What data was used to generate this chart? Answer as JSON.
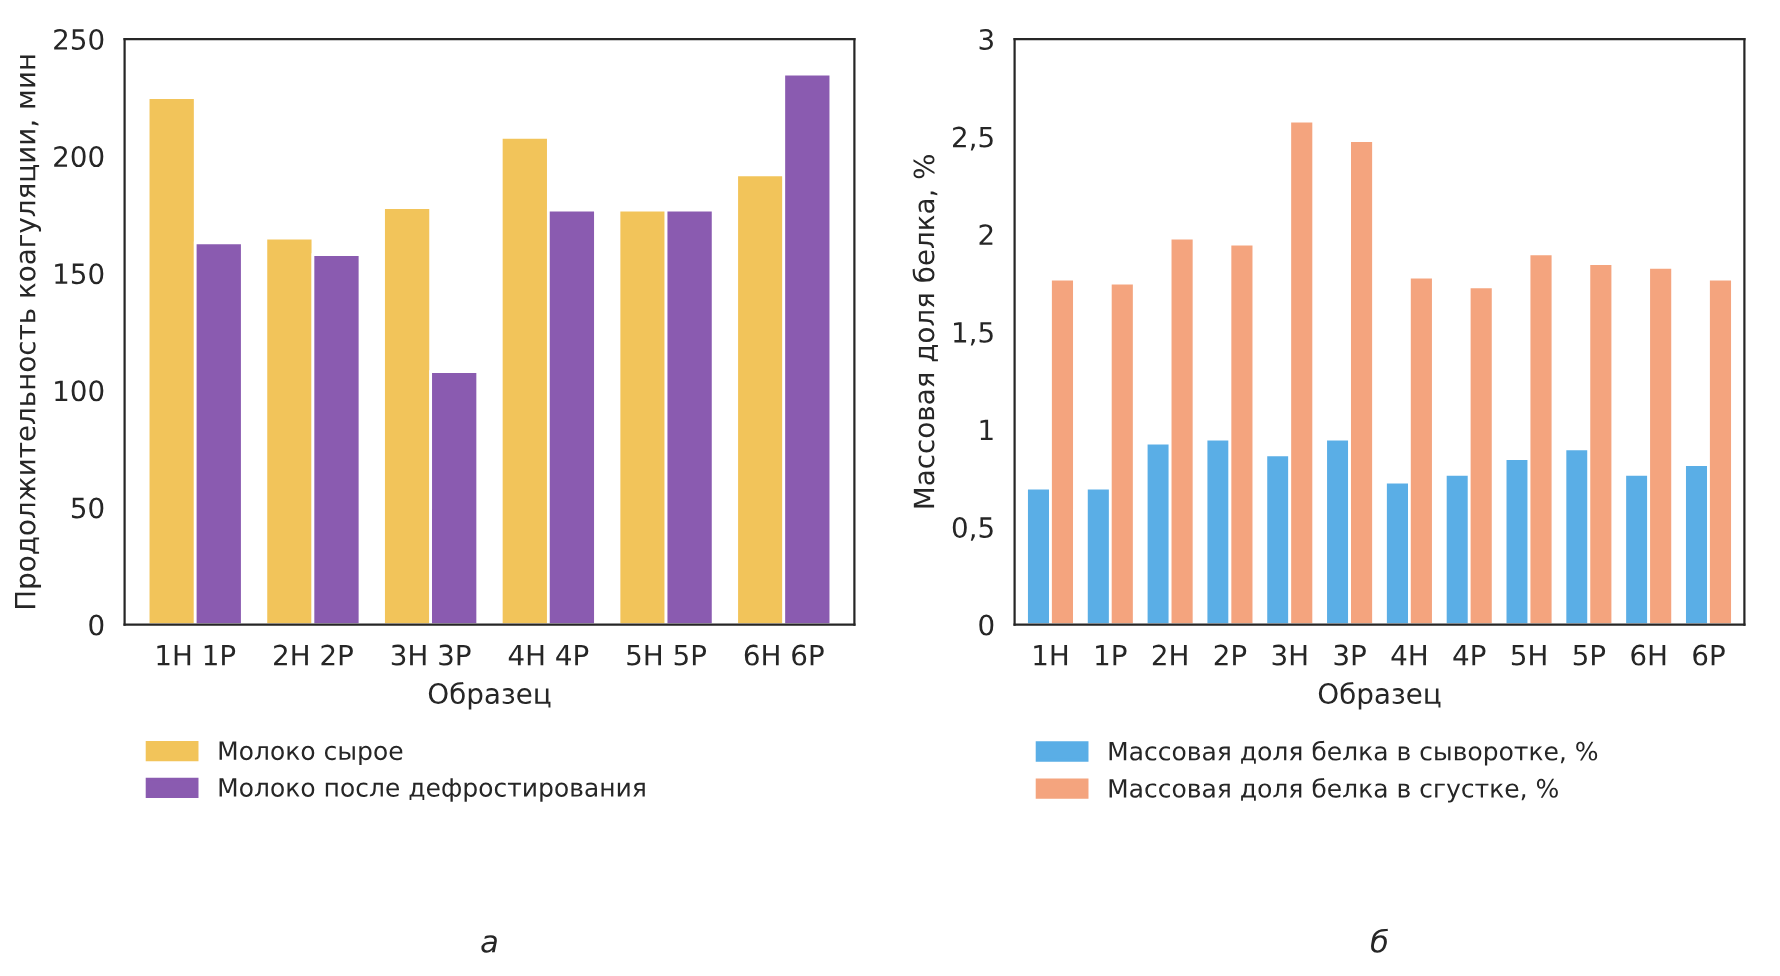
{
  "chart_data": [
    {
      "type": "bar",
      "xlabel": "Образец",
      "ylabel": "Продолжительность коагуляции, мин",
      "categories": [
        "1Н 1Р",
        "2Н 2Р",
        "3Н 3Р",
        "4Н 4Р",
        "5Н 5Р",
        "6Н 6Р"
      ],
      "series": [
        {
          "name": "Молоко сырое",
          "color": "#f2c45a",
          "values": [
            225,
            165,
            178,
            208,
            177,
            192
          ]
        },
        {
          "name": "Молоко после дефростирования",
          "color": "#8a5bb0",
          "values": [
            163,
            158,
            108,
            177,
            177,
            235
          ]
        }
      ],
      "ylim": [
        0,
        250
      ],
      "yticks": [
        0,
        50,
        100,
        150,
        200,
        250
      ],
      "legend": "bottom",
      "annotations": [
        "а"
      ]
    },
    {
      "type": "bar",
      "xlabel": "Образец",
      "ylabel": "Массовая доля белка, %",
      "categories": [
        "1Н",
        "1Р",
        "2Н",
        "2Р",
        "3Н",
        "3Р",
        "4Н",
        "4Р",
        "5Н",
        "5Р",
        "6Н",
        "6Р"
      ],
      "series": [
        {
          "name": "Массовая доля белка в сыворотке, %",
          "color": "#5aaee6",
          "values": [
            0.7,
            0.7,
            0.93,
            0.95,
            0.87,
            0.95,
            0.73,
            0.77,
            0.85,
            0.9,
            0.77,
            0.82
          ]
        },
        {
          "name": "Массовая доля белка в сгустке, %",
          "color": "#f4a47e",
          "values": [
            1.77,
            1.75,
            1.98,
            1.95,
            2.58,
            2.48,
            1.78,
            1.73,
            1.9,
            1.85,
            1.83,
            1.77
          ]
        }
      ],
      "ylim": [
        0,
        3
      ],
      "yticks": [
        0,
        {
          "value": 0.5,
          "label": "0,5"
        },
        1,
        {
          "value": 1.5,
          "label": "1,5"
        },
        2,
        {
          "value": 2.5,
          "label": "2,5"
        },
        3
      ],
      "legend": "bottom",
      "annotations": [
        "б"
      ]
    }
  ]
}
